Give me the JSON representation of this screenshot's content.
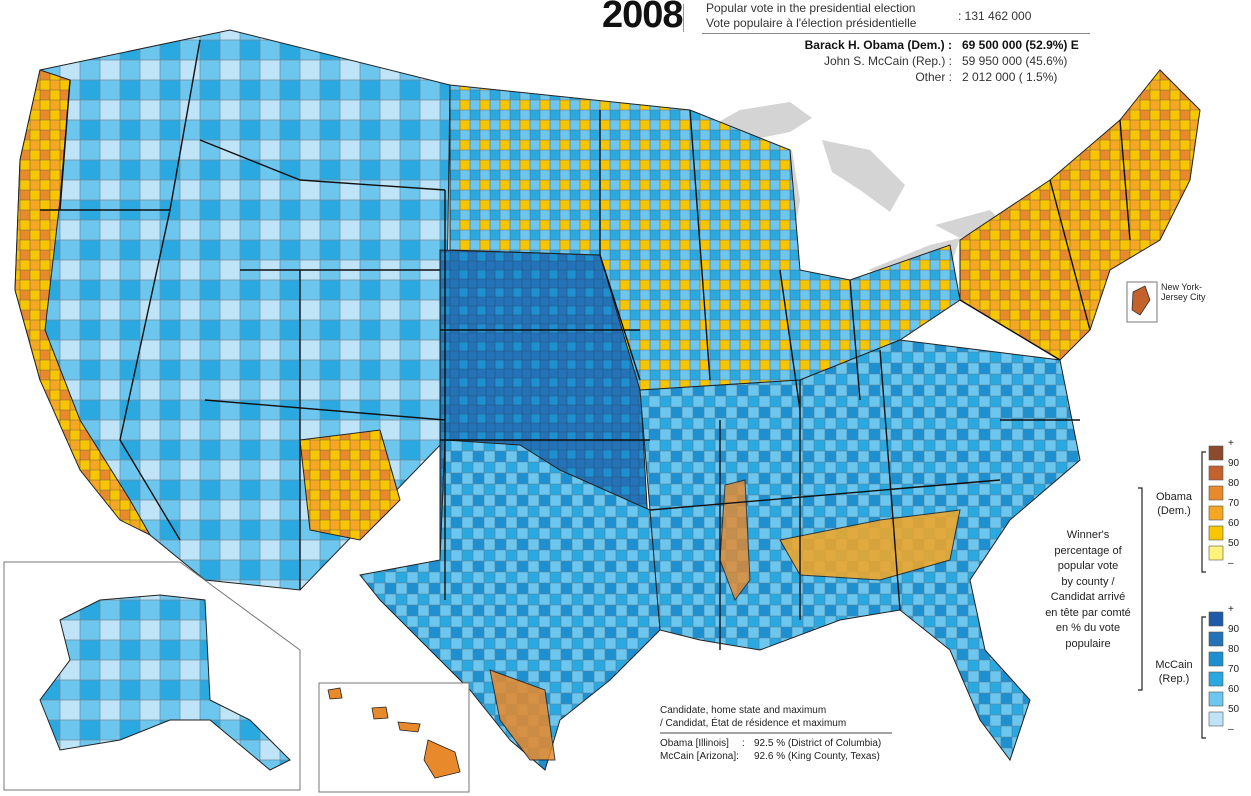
{
  "header": {
    "year": "2008",
    "popular_vote_en": "Popular vote in the presidential election",
    "popular_vote_fr": "Vote populaire à l'élection présidentielle",
    "popular_vote_total": ": 131 462 000"
  },
  "candidates": [
    {
      "name": "Barack H. Obama (Dem.) :",
      "value": "69 500 000  (52.9%) E",
      "bold": true
    },
    {
      "name": "John S. McCain (Rep.) :",
      "value": "59 950 000  (45.6%)",
      "bold": false
    },
    {
      "name": "Other :",
      "value": "2 012 000  ( 1.5%)",
      "bold": false
    }
  ],
  "legend": {
    "title_lines": [
      "Winner's",
      "percentage of",
      "popular vote",
      "by county /",
      "Candidat arrivé",
      "en tête par comté",
      "en % du vote",
      "populaire"
    ],
    "obama": {
      "label_lines": [
        "Obama",
        "(Dem.)"
      ],
      "colors": [
        "#8b4a2b",
        "#c4622d",
        "#e8892b",
        "#f5a623",
        "#f7c600",
        "#fff27a"
      ],
      "ticks": [
        "+",
        "90",
        "80",
        "70",
        "60",
        "50",
        "–"
      ]
    },
    "mccain": {
      "label_lines": [
        "McCain",
        "(Rep.)"
      ],
      "colors": [
        "#1f5aa8",
        "#2472b8",
        "#1e90d0",
        "#2aa8e0",
        "#6cc6ee",
        "#bfe3f7"
      ],
      "ticks": [
        "+",
        "90",
        "80",
        "70",
        "60",
        "50",
        "–"
      ]
    }
  },
  "inset_label": "New York-\nJersey City",
  "inset_label_lines": [
    "New York-",
    "Jersey City"
  ],
  "max_note": {
    "title_en": "Candidate, home state and maximum",
    "title_fr": "/ Candidat, État de résidence et maximum",
    "rows": [
      {
        "candidate": "Obama [Illinois]",
        "sep": ":",
        "value": "92.5 % (District of Columbia)"
      },
      {
        "candidate": "McCain [Arizona]:",
        "sep": "",
        "value": "92.6 % (King County, Texas)"
      }
    ]
  },
  "colors": {
    "lake": "#d4d4d4",
    "state_border": "#222222",
    "county_border": "#7a7a7a"
  }
}
